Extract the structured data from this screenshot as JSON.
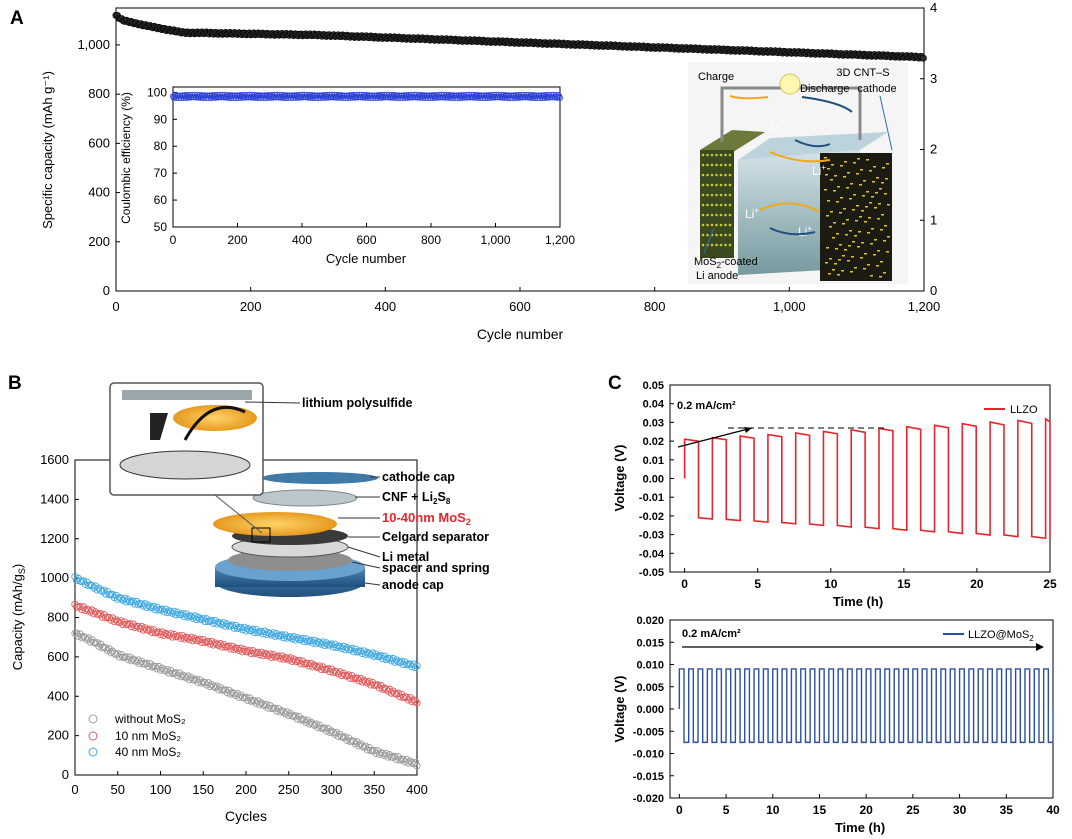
{
  "panels": {
    "a": {
      "label": "A",
      "chart_data": {
        "type": "scatter",
        "xlabel": "Cycle number",
        "ylabel": "Specific capacity (mAh g⁻¹)",
        "xlim": [
          0,
          1200
        ],
        "ylim": [
          0,
          1150
        ],
        "xticks": [
          "0",
          "200",
          "400",
          "600",
          "800",
          "1,000",
          "1,200"
        ],
        "yticks": [
          "0",
          "200",
          "400",
          "600",
          "800",
          "1,000"
        ],
        "y2ticks": [
          "0",
          "1",
          "2",
          "3",
          "4"
        ],
        "series": [
          {
            "name": "capacity",
            "x": [
              0,
              10,
              50,
              100,
              200,
              300,
              400,
              500,
              600,
              700,
              800,
              900,
              1000,
              1100,
              1200
            ],
            "y": [
              1120,
              1100,
              1075,
              1050,
              1045,
              1040,
              1030,
              1020,
              1010,
              1000,
              990,
              980,
              970,
              960,
              950
            ]
          }
        ],
        "inset": {
          "xlabel": "Cycle number",
          "ylabel": "Coulombic efficiency (%)",
          "xlim": [
            0,
            1200
          ],
          "ylim": [
            50,
            102
          ],
          "xticks": [
            "0",
            "200",
            "400",
            "600",
            "800",
            "1,000",
            "1,200"
          ],
          "yticks": [
            "50",
            "60",
            "70",
            "80",
            "90",
            "100"
          ],
          "series": [
            {
              "name": "CE",
              "x": [
                0,
                1200
              ],
              "y": [
                98.5,
                98.5
              ]
            }
          ]
        }
      },
      "schematic": {
        "charge": "Charge",
        "discharge": "Discharge",
        "cathode_line1": "3D CNT–S",
        "cathode_line2": "cathode",
        "li": "Li",
        "li_sup": "+",
        "anode_line1": "MoS",
        "anode_sub": "2",
        "anode_line1b": "-coated",
        "anode_line2": "Li anode"
      }
    },
    "b": {
      "label": "B",
      "chart_data": {
        "type": "scatter",
        "xlabel": "Cycles",
        "ylabel": "Capacity (mAh/g",
        "ylabel_sub": "S",
        "ylabel_end": ")",
        "xlim": [
          0,
          400
        ],
        "ylim": [
          0,
          1600
        ],
        "xticks": [
          "0",
          "50",
          "100",
          "150",
          "200",
          "250",
          "300",
          "350",
          "400"
        ],
        "yticks": [
          "0",
          "200",
          "400",
          "600",
          "800",
          "1000",
          "1200",
          "1400",
          "1600"
        ],
        "series": [
          {
            "name": "without MoS₂",
            "color": "#9b9b9b",
            "x": [
              0,
              20,
              50,
              100,
              150,
              200,
              250,
              300,
              350,
              400
            ],
            "y": [
              720,
              680,
              610,
              540,
              470,
              390,
              310,
              220,
              120,
              55
            ]
          },
          {
            "name": "10 nm MoS₂",
            "color": "#e15b5b",
            "x": [
              0,
              20,
              50,
              100,
              150,
              200,
              250,
              300,
              350,
              400
            ],
            "y": [
              860,
              830,
              780,
              720,
              680,
              630,
              590,
              530,
              460,
              370
            ]
          },
          {
            "name": "40 nm MoS₂",
            "color": "#3fa8e0",
            "x": [
              0,
              20,
              50,
              100,
              150,
              200,
              250,
              300,
              350,
              400
            ],
            "y": [
              1000,
              960,
              900,
              840,
              790,
              740,
              700,
              660,
              610,
              550
            ]
          }
        ],
        "legend": [
          "without MoS₂",
          "10 nm MoS₂",
          "40 nm MoS₂"
        ]
      },
      "schematic": {
        "lithium_polysulfide": "lithium polysulfide",
        "cathode_cap": "cathode cap",
        "cnf": "CNF + Li",
        "cnf_sub": "2",
        "cnf_s": "S",
        "cnf_sub2": "8",
        "mos2": "10-40nm MoS",
        "mos2_sub": "2",
        "celgard": "Celgard separator",
        "li_metal": "Li metal",
        "spacer": "spacer and spring",
        "anode_cap": "anode cap"
      }
    },
    "c": {
      "label": "C",
      "top": {
        "chart_data": {
          "type": "line",
          "xlabel": "Time (h)",
          "ylabel": "Voltage (V)",
          "xlim": [
            -1,
            25
          ],
          "ylim": [
            -0.05,
            0.05
          ],
          "xticks": [
            "0",
            "5",
            "10",
            "15",
            "20",
            "25"
          ],
          "yticks": [
            "-0.05",
            "-0.04",
            "-0.03",
            "-0.02",
            "-0.01",
            "0.00",
            "0.01",
            "0.02",
            "0.03",
            "0.04",
            "0.05"
          ],
          "series": [
            {
              "name": "LLZO",
              "color": "#e8242b",
              "period_h": 1.9,
              "amp_start": 0.021,
              "amp_end": 0.032
            }
          ],
          "annotation": "0.2 mA/cm²"
        }
      },
      "bottom": {
        "chart_data": {
          "type": "line",
          "xlabel": "Time (h)",
          "ylabel": "Voltage (V)",
          "xlim": [
            -1,
            40
          ],
          "ylim": [
            -0.02,
            0.02
          ],
          "xticks": [
            "0",
            "5",
            "10",
            "15",
            "20",
            "25",
            "30",
            "35",
            "40"
          ],
          "yticks": [
            "-0.020",
            "-0.015",
            "-0.010",
            "-0.005",
            "0.000",
            "0.005",
            "0.010",
            "0.015",
            "0.020"
          ],
          "series": [
            {
              "name": "LLZO@MoS",
              "name_sub": "2",
              "color": "#2a4fa0",
              "period_h": 1.0,
              "amp_pos": 0.009,
              "amp_neg": -0.0075
            }
          ],
          "annotation": "0.2 mA/cm²"
        }
      }
    }
  }
}
